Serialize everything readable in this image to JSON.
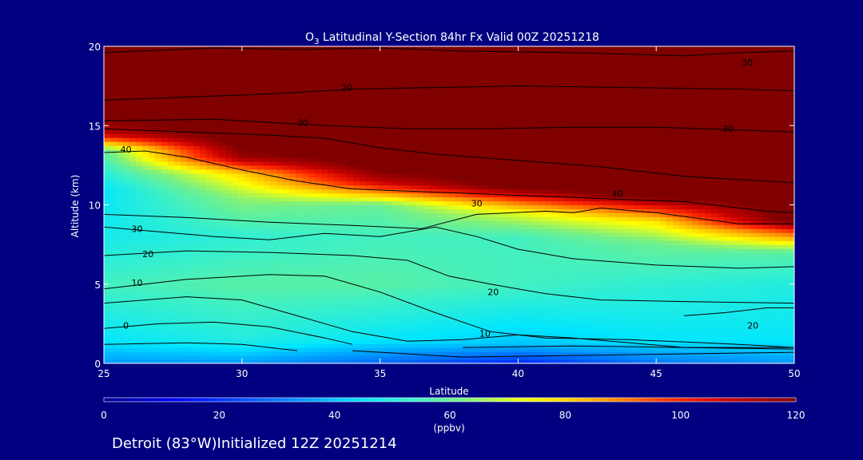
{
  "chart_data": {
    "type": "heatmap",
    "title_prefix": "O",
    "title_subscript": "3",
    "title_rest": " Latitudinal Y-Section 84hr  Fx Valid 00Z 20251218",
    "xlabel": "Latitude",
    "ylabel": "Altitude (km)",
    "xlim": [
      25,
      50
    ],
    "ylim": [
      0,
      20
    ],
    "x_ticks": [
      25,
      30,
      35,
      40,
      45,
      50
    ],
    "y_ticks": [
      0,
      5,
      10,
      15,
      20
    ],
    "colorbar": {
      "min": 0,
      "max": 120,
      "ticks": [
        0,
        20,
        40,
        60,
        80,
        100,
        120
      ],
      "label": "(ppbv)"
    },
    "field_ppbv": [
      {
        "lat": 25,
        "profile": [
          [
            0,
            35
          ],
          [
            1.5,
            45
          ],
          [
            5,
            55
          ],
          [
            8,
            48
          ],
          [
            11,
            45
          ],
          [
            13.5,
            60
          ],
          [
            14.5,
            110
          ],
          [
            16,
            125
          ],
          [
            20,
            130
          ]
        ]
      },
      {
        "lat": 30,
        "profile": [
          [
            0,
            35
          ],
          [
            1.5,
            50
          ],
          [
            5,
            58
          ],
          [
            8,
            52
          ],
          [
            10.5,
            65
          ],
          [
            12,
            80
          ],
          [
            13,
            115
          ],
          [
            14,
            125
          ],
          [
            20,
            130
          ]
        ]
      },
      {
        "lat": 35,
        "profile": [
          [
            0,
            28
          ],
          [
            1.5,
            45
          ],
          [
            5,
            58
          ],
          [
            8,
            55
          ],
          [
            10,
            60
          ],
          [
            11.5,
            110
          ],
          [
            12.5,
            125
          ],
          [
            20,
            130
          ]
        ]
      },
      {
        "lat": 40,
        "profile": [
          [
            0,
            18
          ],
          [
            1.2,
            40
          ],
          [
            5,
            55
          ],
          [
            8,
            55
          ],
          [
            9.5,
            72
          ],
          [
            10.3,
            95
          ],
          [
            11.2,
            125
          ],
          [
            20,
            130
          ]
        ]
      },
      {
        "lat": 45,
        "profile": [
          [
            0,
            30
          ],
          [
            1.5,
            45
          ],
          [
            5,
            52
          ],
          [
            7.5,
            60
          ],
          [
            9,
            78
          ],
          [
            9.8,
            100
          ],
          [
            10.6,
            125
          ],
          [
            20,
            130
          ]
        ]
      },
      {
        "lat": 50,
        "profile": [
          [
            0,
            35
          ],
          [
            1.5,
            45
          ],
          [
            5,
            50
          ],
          [
            7,
            58
          ],
          [
            8.3,
            95
          ],
          [
            9,
            125
          ],
          [
            20,
            130
          ]
        ]
      }
    ],
    "contours": [
      {
        "level": "0",
        "points": [
          [
            25,
            2.2
          ],
          [
            27,
            2.5
          ],
          [
            29,
            2.6
          ],
          [
            31,
            2.3
          ],
          [
            33,
            1.6
          ],
          [
            34,
            1.2
          ]
        ]
      },
      {
        "level": "0",
        "points": [
          [
            25,
            1.2
          ],
          [
            28,
            1.3
          ],
          [
            30,
            1.2
          ],
          [
            32,
            0.8
          ]
        ]
      },
      {
        "level": "0",
        "points": [
          [
            34,
            0.8
          ],
          [
            38,
            0.4
          ],
          [
            42,
            0.5
          ],
          [
            46,
            0.6
          ],
          [
            50,
            0.7
          ]
        ]
      },
      {
        "level": "0",
        "points": [
          [
            38,
            1.0
          ],
          [
            42,
            1.1
          ],
          [
            46,
            1.0
          ],
          [
            50,
            1.0
          ]
        ]
      },
      {
        "level": "10",
        "points": [
          [
            25,
            4.7
          ],
          [
            28,
            5.3
          ],
          [
            31,
            5.6
          ],
          [
            33,
            5.5
          ],
          [
            35,
            4.5
          ],
          [
            37,
            3.2
          ],
          [
            39,
            2.0
          ],
          [
            41,
            1.6
          ],
          [
            44,
            1.5
          ],
          [
            48,
            1.2
          ],
          [
            50,
            1.0
          ]
        ]
      },
      {
        "level": "10",
        "points": [
          [
            25,
            3.8
          ],
          [
            28,
            4.2
          ],
          [
            30,
            4.0
          ],
          [
            32,
            3.0
          ],
          [
            34,
            2.0
          ],
          [
            36,
            1.4
          ],
          [
            38,
            1.5
          ],
          [
            40,
            1.8
          ],
          [
            42,
            1.6
          ],
          [
            46,
            1.0
          ],
          [
            50,
            0.9
          ]
        ]
      },
      {
        "level": "20",
        "points": [
          [
            25,
            6.8
          ],
          [
            28,
            7.1
          ],
          [
            31,
            7.0
          ],
          [
            34,
            6.8
          ],
          [
            36,
            6.5
          ],
          [
            37.5,
            5.5
          ],
          [
            39,
            5.0
          ],
          [
            41,
            4.4
          ],
          [
            43,
            4.0
          ],
          [
            46,
            3.9
          ],
          [
            50,
            3.8
          ]
        ]
      },
      {
        "level": "20",
        "points": [
          [
            46,
            3.0
          ],
          [
            47.5,
            3.2
          ],
          [
            49,
            3.5
          ],
          [
            50,
            3.5
          ]
        ]
      },
      {
        "level": "30",
        "points": [
          [
            25,
            8.6
          ],
          [
            27,
            8.3
          ],
          [
            29,
            8.0
          ],
          [
            31,
            7.8
          ],
          [
            33,
            8.2
          ],
          [
            35,
            8.0
          ],
          [
            37,
            8.6
          ],
          [
            38.5,
            8.0
          ],
          [
            40,
            7.2
          ],
          [
            42,
            6.6
          ],
          [
            45,
            6.2
          ],
          [
            48,
            6.0
          ],
          [
            50,
            6.1
          ]
        ]
      },
      {
        "level": "30",
        "points": [
          [
            25,
            9.4
          ],
          [
            28,
            9.2
          ],
          [
            31,
            8.9
          ],
          [
            34,
            8.7
          ],
          [
            36.5,
            8.5
          ],
          [
            38.5,
            9.4
          ],
          [
            41,
            9.6
          ],
          [
            42,
            9.5
          ],
          [
            43,
            9.8
          ],
          [
            45,
            9.5
          ],
          [
            48,
            8.8
          ],
          [
            50,
            8.8
          ]
        ]
      },
      {
        "level": "40",
        "points": [
          [
            25,
            13.3
          ],
          [
            26.5,
            13.4
          ],
          [
            28,
            13.0
          ],
          [
            30,
            12.2
          ],
          [
            32,
            11.5
          ],
          [
            34,
            11.0
          ],
          [
            37,
            10.8
          ],
          [
            40,
            10.6
          ],
          [
            43,
            10.4
          ],
          [
            46,
            10.2
          ],
          [
            49,
            9.6
          ],
          [
            50,
            9.5
          ]
        ]
      },
      {
        "level": "30",
        "points": [
          [
            25,
            14.8
          ],
          [
            28,
            14.6
          ],
          [
            31,
            14.4
          ],
          [
            33,
            14.2
          ],
          [
            35,
            13.6
          ],
          [
            37,
            13.2
          ],
          [
            40,
            12.8
          ],
          [
            43,
            12.4
          ],
          [
            46,
            11.8
          ],
          [
            50,
            11.4
          ]
        ]
      },
      {
        "level": "30",
        "points": [
          [
            25,
            15.3
          ],
          [
            29,
            15.4
          ],
          [
            31,
            15.2
          ],
          [
            33,
            15.0
          ],
          [
            36,
            14.8
          ],
          [
            39,
            14.8
          ],
          [
            42,
            14.9
          ],
          [
            45,
            14.9
          ],
          [
            50,
            14.6
          ]
        ]
      },
      {
        "level": "20",
        "points": [
          [
            25,
            16.6
          ],
          [
            28,
            16.8
          ],
          [
            31,
            17.0
          ],
          [
            34,
            17.3
          ],
          [
            37,
            17.4
          ],
          [
            40,
            17.5
          ],
          [
            44,
            17.4
          ],
          [
            48,
            17.3
          ],
          [
            50,
            17.2
          ]
        ]
      },
      {
        "level": "10",
        "points": [
          [
            25,
            19.6
          ],
          [
            29,
            19.9
          ],
          [
            32,
            19.8
          ],
          [
            35,
            19.9
          ],
          [
            38,
            19.7
          ],
          [
            42,
            19.6
          ],
          [
            46,
            19.4
          ],
          [
            48,
            19.6
          ],
          [
            50,
            19.7
          ]
        ]
      }
    ],
    "contour_labels": [
      {
        "text": "0",
        "lat": 25.8,
        "alt": 2.4
      },
      {
        "text": "10",
        "lat": 26.2,
        "alt": 5.1
      },
      {
        "text": "20",
        "lat": 26.6,
        "alt": 6.9
      },
      {
        "text": "30",
        "lat": 26.2,
        "alt": 8.5
      },
      {
        "text": "40",
        "lat": 25.8,
        "alt": 13.5
      },
      {
        "text": "30",
        "lat": 32.2,
        "alt": 15.2
      },
      {
        "text": "20",
        "lat": 33.8,
        "alt": 17.4
      },
      {
        "text": "10",
        "lat": 38.8,
        "alt": 1.9
      },
      {
        "text": "20",
        "lat": 39.1,
        "alt": 4.5
      },
      {
        "text": "30",
        "lat": 38.5,
        "alt": 10.1
      },
      {
        "text": "40",
        "lat": 43.6,
        "alt": 10.7
      },
      {
        "text": "30",
        "lat": 47.6,
        "alt": 14.8
      },
      {
        "text": "30",
        "lat": 48.3,
        "alt": 19.0
      },
      {
        "text": "20",
        "lat": 48.5,
        "alt": 2.4
      }
    ]
  },
  "footer": {
    "station": "Detroit (83°W)Initialized 12Z 20251214"
  },
  "colors": {
    "background": "#000080",
    "plot_low": "#00008f",
    "plot_high": "#800000"
  }
}
